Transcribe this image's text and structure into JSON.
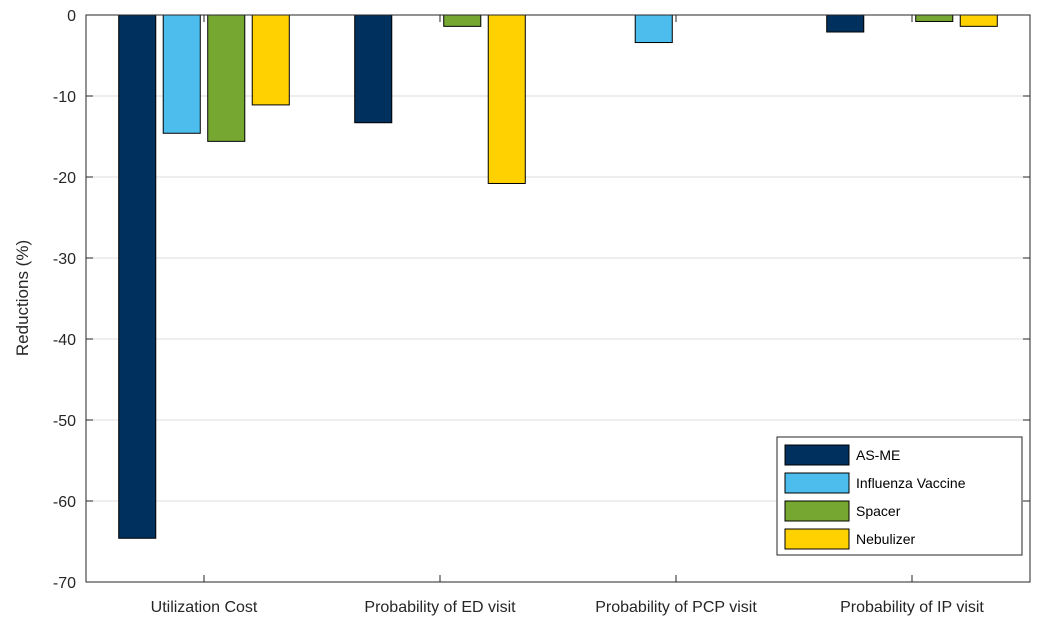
{
  "chart_data": {
    "type": "bar",
    "title": "",
    "xlabel": "",
    "ylabel": "Reductions (%)",
    "ylim": [
      -70,
      0
    ],
    "yticks": [
      0,
      -10,
      -20,
      -30,
      -40,
      -50,
      -60,
      -70
    ],
    "grid": "horizontal",
    "legend_position": "bottom-right",
    "categories": [
      "Utilization Cost",
      "Probability of ED visit",
      "Probability of PCP visit",
      "Probability of IP visit"
    ],
    "series": [
      {
        "name": "AS-ME",
        "color": "#00305E",
        "values": [
          -64.6,
          -13.3,
          0,
          -2.1
        ]
      },
      {
        "name": "Influenza Vaccine",
        "color": "#4CBDED",
        "values": [
          -14.6,
          0,
          -3.4,
          0
        ]
      },
      {
        "name": "Spacer",
        "color": "#76A831",
        "values": [
          -15.6,
          -1.4,
          0,
          -0.8
        ]
      },
      {
        "name": "Nebulizer",
        "color": "#FFD100",
        "values": [
          -11.1,
          -20.8,
          0,
          -1.4
        ]
      }
    ]
  }
}
